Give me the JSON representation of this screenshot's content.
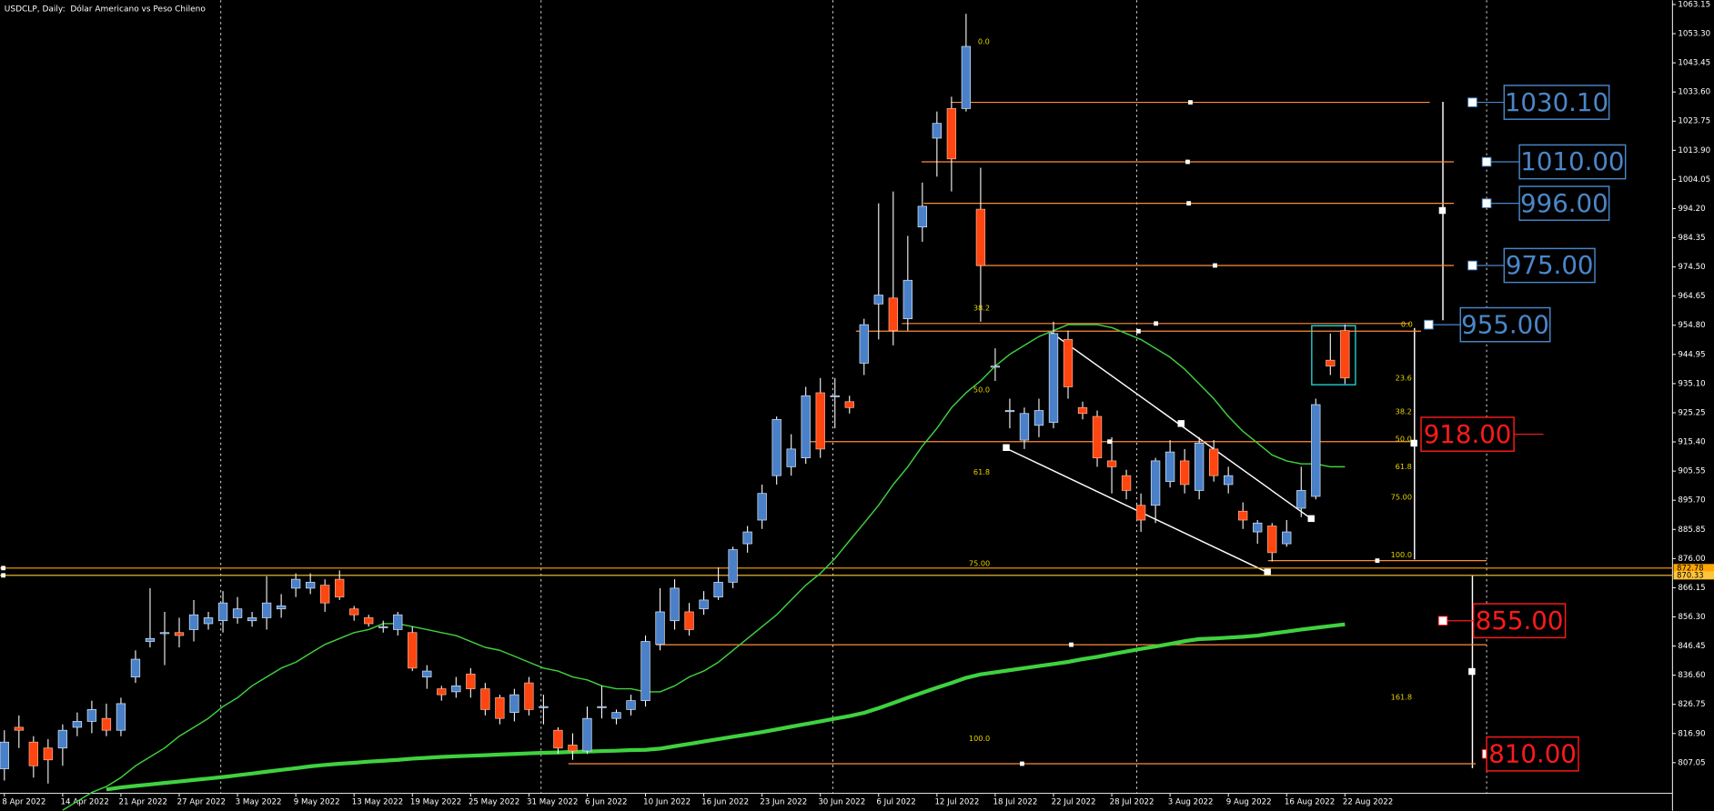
{
  "chart_data": {
    "type": "candlestick",
    "title": "USDCLP, Daily:  Dólar Americano vs Peso Chileno",
    "categories": [
      "8 Apr 2022",
      null,
      null,
      null,
      "14 Apr 2022",
      null,
      null,
      null,
      "21 Apr 2022",
      null,
      null,
      null,
      "27 Apr 2022",
      null,
      null,
      null,
      "3 May 2022",
      null,
      null,
      null,
      "9 May 2022",
      null,
      null,
      null,
      "13 May 2022",
      null,
      null,
      null,
      "19 May 2022",
      null,
      null,
      null,
      "25 May 2022",
      null,
      null,
      null,
      "31 May 2022",
      null,
      null,
      null,
      "6 Jun 2022",
      null,
      null,
      null,
      "10 Jun 2022",
      null,
      null,
      null,
      "16 Jun 2022",
      null,
      null,
      null,
      "23 Jun 2022",
      null,
      null,
      null,
      "30 Jun 2022",
      null,
      null,
      null,
      "6 Jul 2022",
      null,
      null,
      null,
      "12 Jul 2022",
      null,
      null,
      null,
      "18 Jul 2022",
      null,
      null,
      null,
      "22 Jul 2022",
      null,
      null,
      null,
      "28 Jul 2022",
      null,
      null,
      null,
      "3 Aug 2022",
      null,
      null,
      null,
      "9 Aug 2022",
      null,
      null,
      null,
      "16 Aug 2022",
      null,
      null,
      null,
      "22 Aug 2022"
    ],
    "open": [
      805,
      819,
      814,
      812,
      812,
      819,
      821,
      822,
      818,
      836,
      848,
      851,
      851,
      852,
      854,
      855,
      856,
      855,
      856,
      859,
      866,
      866,
      867,
      869,
      859,
      856,
      853,
      852,
      851,
      836,
      832,
      831,
      837,
      832,
      829,
      824,
      834,
      826,
      818,
      813,
      811,
      826,
      822,
      825,
      828,
      847,
      855,
      858,
      859,
      863,
      868,
      881,
      889,
      904,
      907,
      910,
      932,
      931,
      929,
      942,
      962,
      964,
      957,
      988,
      1018,
      1028,
      1028,
      994,
      941,
      926,
      916,
      921,
      922,
      950,
      927,
      924,
      909,
      904,
      894,
      894,
      902,
      909,
      899,
      913,
      901,
      892,
      885,
      887,
      881,
      893,
      897,
      943,
      953
    ],
    "close": [
      814,
      818,
      806,
      808,
      818,
      821,
      825,
      818,
      827,
      842,
      849,
      851,
      850,
      857,
      856,
      861,
      859,
      856,
      861,
      860,
      869,
      868,
      861,
      863,
      857,
      854,
      853,
      857,
      839,
      838,
      830,
      833,
      832,
      825,
      822,
      830,
      825,
      826,
      812,
      811,
      822,
      826,
      824,
      828,
      848,
      858,
      866,
      852,
      862,
      868,
      879,
      885,
      898,
      923,
      913,
      931,
      913,
      931,
      927,
      955,
      965,
      953,
      970,
      995,
      1023,
      1011,
      1049,
      975,
      941,
      926,
      925,
      926,
      952,
      934,
      925,
      910,
      907,
      899,
      889,
      909,
      912,
      901,
      915,
      904,
      904,
      889,
      888,
      878,
      885,
      899,
      928,
      941,
      937
    ],
    "high": [
      818,
      823,
      816,
      815,
      820,
      824,
      828,
      827,
      829,
      845,
      866,
      858,
      856,
      862,
      858,
      865,
      863,
      858,
      870,
      864,
      871,
      871,
      869,
      872,
      860,
      857,
      855,
      858,
      853,
      840,
      833,
      836,
      839,
      834,
      830,
      832,
      836,
      830,
      819,
      817,
      826,
      833,
      825,
      830,
      850,
      866,
      869,
      861,
      865,
      873,
      880,
      887,
      901,
      924,
      918,
      934,
      937,
      937,
      931,
      957,
      996,
      1000,
      985,
      1003,
      1027,
      1032,
      1060,
      1008,
      947,
      930,
      927,
      930,
      956,
      953,
      929,
      926,
      917,
      906,
      898,
      910,
      916,
      913,
      917,
      916,
      907,
      895,
      889,
      888,
      889,
      907,
      930,
      952,
      955
    ],
    "low": [
      801,
      812,
      802,
      800,
      806,
      816,
      817,
      816,
      816,
      834,
      846,
      840,
      846,
      848,
      852,
      851,
      854,
      853,
      852,
      856,
      863,
      864,
      858,
      862,
      855,
      853,
      851,
      850,
      838,
      832,
      828,
      829,
      829,
      823,
      820,
      821,
      823,
      820,
      810,
      808,
      810,
      822,
      820,
      823,
      826,
      845,
      852,
      850,
      857,
      862,
      866,
      878,
      886,
      901,
      904,
      908,
      910,
      920,
      925,
      938,
      950,
      948,
      953,
      983,
      1005,
      1000,
      1027,
      956,
      936,
      920,
      913,
      917,
      920,
      930,
      923,
      907,
      898,
      896,
      885,
      888,
      900,
      898,
      896,
      902,
      898,
      886,
      881,
      875,
      880,
      890,
      896,
      938,
      935
    ],
    "up_color": "#4a80c8",
    "down_color": "#ff4510",
    "ylim": [
      790.8,
      1064.6
    ],
    "yticks": [
      1063.15,
      {
        "value": 1053.3,
        "label": "1053.30"
      },
      1043.45,
      {
        "value": 1033.6,
        "label": "1033.60"
      },
      1023.75,
      {
        "value": 1013.9,
        "label": "1013.90"
      },
      1004.05,
      {
        "value": 994.2,
        "label": "994.20"
      },
      984.35,
      {
        "value": 974.5,
        "label": "974.50"
      },
      964.65,
      {
        "value": 954.8,
        "label": "954.80"
      },
      944.95,
      {
        "value": 935.1,
        "label": "935.10"
      },
      925.25,
      {
        "value": 915.4,
        "label": "915.40"
      },
      905.55,
      {
        "value": 895.7,
        "label": "895.70"
      },
      885.85,
      {
        "value": 876,
        "label": "876.00"
      },
      866.15,
      {
        "value": 856.3,
        "label": "856.30"
      },
      846.45,
      {
        "value": 836.6,
        "label": "836.60"
      },
      826.75,
      {
        "value": 816.9,
        "label": "816.90"
      },
      807.05
    ],
    "moving_averages": [
      {
        "color": "#3fd23f",
        "width": 1.2,
        "values": [
          null,
          null,
          null,
          null,
          791,
          794,
          797,
          799,
          802,
          806,
          809,
          812,
          816,
          819,
          822,
          826,
          829,
          833,
          836,
          839,
          841,
          844,
          847,
          849,
          851,
          852,
          854,
          854,
          853,
          852,
          851,
          850,
          848,
          846,
          845,
          843,
          841,
          839,
          838,
          836,
          835,
          833,
          832,
          832,
          831,
          831,
          833,
          836,
          838,
          841,
          845,
          849,
          853,
          857,
          862,
          867,
          871,
          876,
          882,
          888,
          894,
          901,
          907,
          914,
          920,
          927,
          932,
          936,
          941,
          945,
          948,
          951,
          953,
          955,
          955,
          955,
          954,
          952,
          950,
          947,
          944,
          940,
          935,
          930,
          924,
          919,
          915,
          911,
          909,
          908,
          908,
          907,
          907
        ]
      },
      {
        "color": "#3fd23f",
        "width": 3.5,
        "values": [
          null,
          null,
          null,
          null,
          null,
          null,
          null,
          798,
          798.7,
          799.2,
          799.7,
          800.2,
          800.7,
          801.2,
          801.7,
          802.2,
          802.8,
          803.4,
          804,
          804.6,
          805.2,
          805.8,
          806.3,
          806.7,
          807,
          807.4,
          807.7,
          808,
          808.4,
          808.7,
          809,
          809.2,
          809.4,
          809.6,
          809.8,
          810,
          810.2,
          810.4,
          810.5,
          810.7,
          810.8,
          811,
          811.1,
          811.3,
          811.4,
          811.8,
          812.6,
          813.4,
          814.2,
          815,
          815.8,
          816.6,
          817.4,
          818.3,
          819.2,
          820.1,
          821,
          821.9,
          822.8,
          823.9,
          825.5,
          827.2,
          829,
          830.7,
          832.4,
          834,
          835.7,
          836.9,
          837.6,
          838.3,
          839,
          839.7,
          840.4,
          841.1,
          842,
          842.8,
          843.7,
          844.6,
          845.5,
          846.3,
          847.2,
          848.1,
          848.8,
          849,
          849.3,
          849.6,
          850,
          850.7,
          851.3,
          852,
          852.6,
          853.2,
          853.8
        ]
      }
    ],
    "hlines": [
      1030.1,
      1010,
      996,
      975,
      955.4,
      952.8,
      915.5,
      875.3,
      846.9,
      806.7
    ],
    "hline_color": "#ff8c3a",
    "price_lines": [
      {
        "value": 872.78,
        "color": "#ffa500"
      },
      {
        "value": 870.33,
        "color": "#ffc53a"
      }
    ],
    "levels": [
      {
        "value": 1030.1,
        "label": "1030.10",
        "color": "#4a87c8"
      },
      {
        "value": 1010,
        "label": "1010.00",
        "color": "#4a87c8"
      },
      {
        "value": 996,
        "label": "996.00",
        "color": "#4a87c8"
      },
      {
        "value": 975,
        "label": "975.00",
        "color": "#4a87c8"
      },
      {
        "value": 955,
        "label": "955.00",
        "color": "#4a87c8"
      },
      {
        "value": 918,
        "label": "918.00",
        "color": "#ff1a1a"
      },
      {
        "value": 855,
        "label": "855.00",
        "color": "#ff1a1a"
      },
      {
        "value": 810,
        "label": "810.00",
        "color": "#ff1a1a"
      }
    ],
    "fib_labels": [
      "0.0",
      "38.2",
      "50.0",
      "61.8",
      "75.00",
      "100.0",
      "0.0",
      "23.6",
      "38.2",
      "50.0",
      "61.8",
      "75.00",
      "100.0",
      "161.8"
    ],
    "fib_color": "#e6d200"
  }
}
